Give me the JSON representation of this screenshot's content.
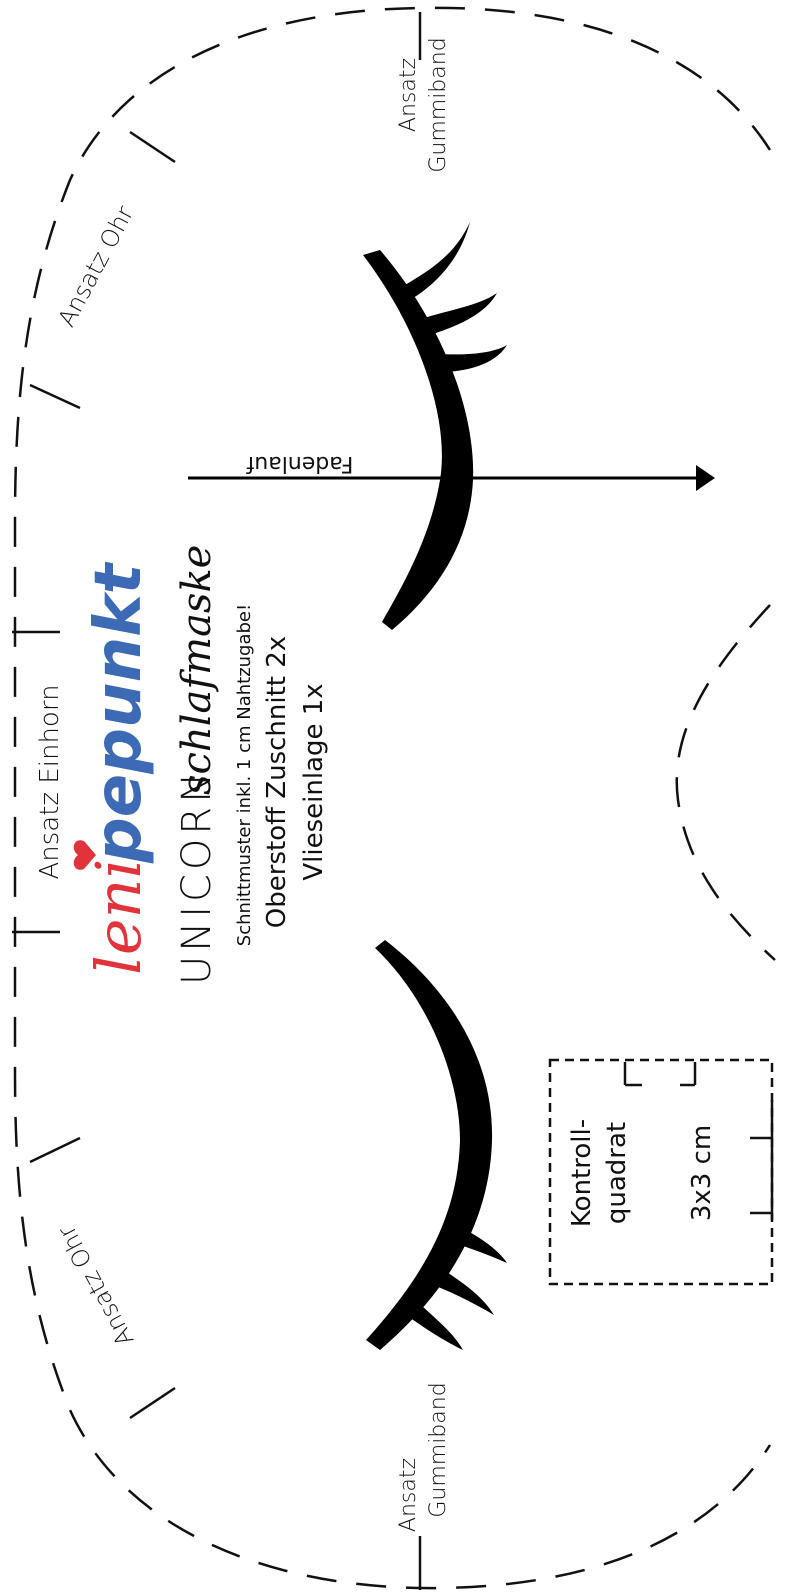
{
  "brand": {
    "part1": "leni",
    "part2": "pepunkt",
    "colors": {
      "leni_red": "#e0333c",
      "pepunkt_blue": "#3d6ab5",
      "ink": "#111111"
    }
  },
  "product": {
    "prefix": "UNICORN",
    "script": "schlafmaske"
  },
  "instructions": {
    "seam_note": "Schnittmuster inkl. 1 cm Nahtzugabe!",
    "cut_fabric": "Oberstoff Zuschnitt 2x",
    "cut_interfacing": "Vlieseinlage 1x"
  },
  "markers": {
    "horn": "Ansatz Einhorn",
    "ear_top": "Ansatz Ohr",
    "ear_bottom": "Ansatz Ohr",
    "elastic_top_line1": "Ansatz",
    "elastic_top_line2": "Gummiband",
    "elastic_bottom_line1": "Ansatz",
    "elastic_bottom_line2": "Gummiband"
  },
  "grain": {
    "label": "Fadenlauf"
  },
  "test_square": {
    "line1": "Kontroll-",
    "line2": "quadrat",
    "size": "3x3 cm"
  },
  "icons": [
    "eyelash-left-icon",
    "eyelash-right-icon",
    "heart-icon",
    "grain-arrow-icon"
  ]
}
